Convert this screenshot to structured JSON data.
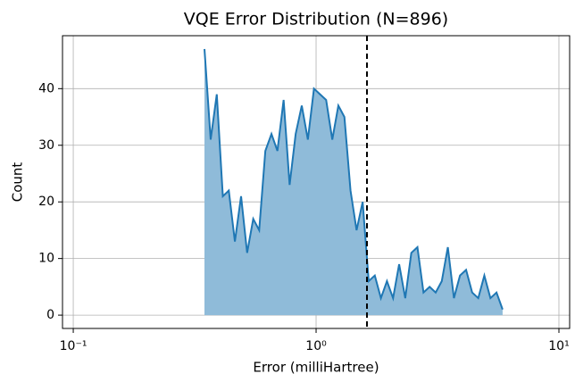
{
  "chart_data": {
    "type": "line",
    "title": "VQE Error Distribution (N=896)",
    "xlabel": "Error (milliHartree)",
    "ylabel": "Count",
    "x": [
      0.347,
      0.368,
      0.39,
      0.413,
      0.437,
      0.463,
      0.491,
      0.52,
      0.551,
      0.583,
      0.618,
      0.655,
      0.693,
      0.735,
      0.778,
      0.824,
      0.873,
      0.925,
      0.98,
      1.038,
      1.1,
      1.166,
      1.235,
      1.308,
      1.386,
      1.468,
      1.555,
      1.647,
      1.745,
      1.849,
      1.958,
      2.075,
      2.198,
      2.329,
      2.467,
      2.614,
      2.769,
      2.934,
      3.108,
      3.293,
      3.488,
      3.695,
      3.914,
      4.147,
      4.393,
      4.654,
      4.93,
      5.223,
      5.533,
      5.862
    ],
    "values": [
      47,
      31,
      39,
      21,
      22,
      13,
      21,
      11,
      17,
      15,
      29,
      32,
      29,
      38,
      23,
      32,
      37,
      31,
      40,
      39,
      38,
      31,
      37,
      35,
      22,
      15,
      20,
      6,
      7,
      3,
      6,
      3,
      9,
      3,
      11,
      12,
      4,
      5,
      4,
      6,
      12,
      3,
      7,
      8,
      4,
      3,
      7,
      3,
      4,
      1
    ],
    "color": "#1f77b4",
    "fill": true,
    "fill_color": "#8fbbd9",
    "xscale": "log",
    "xlim": [
      0.0903,
      11.07
    ],
    "ylim": [
      -2.35,
      49.35
    ],
    "xticks": [
      {
        "value": 0.1,
        "label": "10⁻¹"
      },
      {
        "value": 1,
        "label": "10⁰"
      },
      {
        "value": 10,
        "label": "10¹"
      }
    ],
    "yticks": [
      0,
      10,
      20,
      30,
      40
    ],
    "grid": true,
    "vline": 1.62
  }
}
